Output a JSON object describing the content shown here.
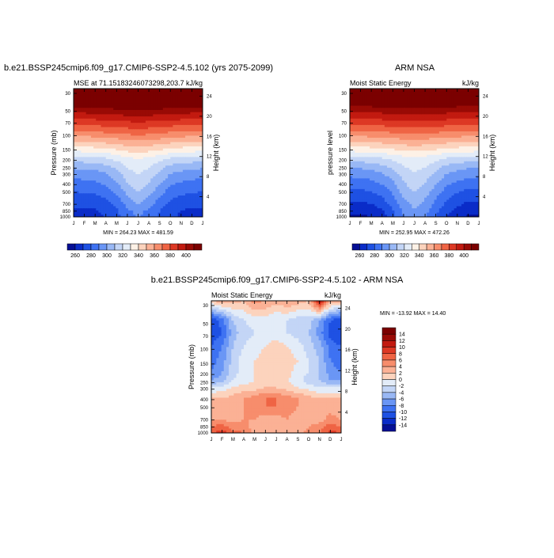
{
  "colormap": [
    "#050f95",
    "#0a2cc8",
    "#1e51e3",
    "#3e72f2",
    "#6a96f5",
    "#99b8f5",
    "#c3d5f6",
    "#e3ecf8",
    "#fdf1e6",
    "#fcd3bd",
    "#fbb195",
    "#f78d6c",
    "#ef6444",
    "#dd3824",
    "#c21a10",
    "#990a05",
    "#7b0000"
  ],
  "chart_data": [
    {
      "id": "model",
      "type": "heatmap",
      "title": "b.e21.BSSP245cmip6.f09_g17.CMIP6-SSP2-4.5.102 (yrs 2075-2099)",
      "left_label": "MSE at 71.15183246073298,203.7",
      "units": "kJ/kg",
      "ylabel": "Pressure (mb)",
      "y2label": "Height (km)",
      "stats": "MIN = 264.23 MAX = 481.59",
      "x": [
        "J",
        "F",
        "M",
        "A",
        "M",
        "J",
        "J",
        "A",
        "S",
        "O",
        "N",
        "D",
        "J"
      ],
      "pressure_ticks": [
        30,
        50,
        70,
        100,
        150,
        200,
        250,
        300,
        400,
        500,
        700,
        850,
        1000
      ],
      "height_ticks": [
        4,
        8,
        12,
        16,
        20,
        24
      ],
      "colorbar_levels": [
        260,
        280,
        300,
        320,
        340,
        360,
        380,
        400
      ],
      "contour_levels": [
        260,
        270,
        280,
        290,
        300,
        310,
        320,
        330,
        340,
        350,
        360,
        370,
        380,
        390,
        400,
        410
      ],
      "levels_hPa": [
        1000,
        850,
        700,
        500,
        400,
        300,
        250,
        200,
        150,
        100,
        70,
        50,
        30
      ],
      "values": [
        [
          266,
          266,
          267,
          270,
          277,
          287,
          291,
          287,
          279,
          272,
          268,
          266,
          266
        ],
        [
          268,
          268,
          269,
          272,
          278,
          288,
          293,
          288,
          280,
          274,
          270,
          268,
          268
        ],
        [
          272,
          272,
          273,
          276,
          282,
          294,
          300,
          294,
          285,
          277,
          274,
          272,
          272
        ],
        [
          280,
          281,
          282,
          285,
          292,
          303,
          311,
          304,
          294,
          286,
          283,
          281,
          280
        ],
        [
          286,
          287,
          288,
          292,
          299,
          310,
          316,
          310,
          301,
          292,
          289,
          287,
          286
        ],
        [
          295,
          296,
          297,
          300,
          306,
          316,
          321,
          316,
          309,
          301,
          298,
          296,
          295
        ],
        [
          303,
          304,
          305,
          308,
          313,
          321,
          326,
          321,
          315,
          308,
          306,
          304,
          303
        ],
        [
          316,
          317,
          318,
          320,
          324,
          329,
          331,
          329,
          325,
          320,
          318,
          317,
          316
        ],
        [
          338,
          339,
          340,
          342,
          344,
          347,
          349,
          347,
          345,
          342,
          340,
          339,
          338
        ],
        [
          366,
          367,
          368,
          370,
          371,
          373,
          374,
          373,
          371,
          369,
          368,
          367,
          366
        ],
        [
          388,
          389,
          390,
          391,
          392,
          393,
          394,
          393,
          392,
          391,
          390,
          389,
          388
        ],
        [
          410,
          410,
          411,
          412,
          413,
          414,
          414,
          414,
          413,
          412,
          411,
          410,
          410
        ],
        [
          450,
          450,
          451,
          452,
          453,
          454,
          454,
          454,
          453,
          452,
          451,
          450,
          450
        ]
      ]
    },
    {
      "id": "obs",
      "type": "heatmap",
      "title": "ARM NSA",
      "left_label": "Moist Static Energy",
      "units": "kJ/kg",
      "ylabel": "pressure level",
      "y2label": "Height (km)",
      "stats": "MIN = 252.95 MAX = 472.26",
      "x": [
        "J",
        "F",
        "M",
        "A",
        "M",
        "J",
        "J",
        "A",
        "S",
        "O",
        "N",
        "D",
        "J"
      ],
      "pressure_ticks": [
        30,
        50,
        70,
        100,
        150,
        200,
        250,
        300,
        400,
        500,
        700,
        850,
        1000
      ],
      "height_ticks": [
        4,
        8,
        12,
        16,
        20,
        24
      ],
      "colorbar_levels": [
        260,
        280,
        300,
        320,
        340,
        360,
        380,
        400
      ],
      "contour_levels": [
        260,
        270,
        280,
        290,
        300,
        310,
        320,
        330,
        340,
        350,
        360,
        370,
        380,
        390,
        400,
        410
      ],
      "levels_hPa": [
        1000,
        850,
        700,
        500,
        400,
        300,
        250,
        200,
        150,
        100,
        70,
        50,
        30
      ],
      "values": [
        [
          258,
          258,
          260,
          265,
          276,
          290,
          297,
          291,
          280,
          270,
          264,
          259,
          258
        ],
        [
          262,
          262,
          264,
          268,
          279,
          292,
          299,
          293,
          283,
          273,
          267,
          263,
          262
        ],
        [
          268,
          268,
          270,
          275,
          284,
          296,
          303,
          297,
          287,
          278,
          272,
          268,
          268
        ],
        [
          277,
          278,
          280,
          284,
          292,
          304,
          311,
          305,
          295,
          286,
          281,
          278,
          277
        ],
        [
          284,
          285,
          287,
          291,
          298,
          309,
          315,
          310,
          301,
          292,
          288,
          285,
          284
        ],
        [
          294,
          295,
          296,
          300,
          306,
          315,
          320,
          316,
          309,
          301,
          297,
          295,
          294
        ],
        [
          302,
          303,
          305,
          308,
          313,
          320,
          324,
          321,
          315,
          308,
          305,
          303,
          302
        ],
        [
          316,
          317,
          318,
          320,
          323,
          327,
          329,
          327,
          324,
          320,
          318,
          317,
          316
        ],
        [
          339,
          339,
          340,
          342,
          344,
          346,
          347,
          346,
          344,
          342,
          340,
          339,
          339
        ],
        [
          367,
          367,
          368,
          369,
          370,
          371,
          372,
          371,
          370,
          369,
          368,
          367,
          367
        ],
        [
          389,
          389,
          390,
          390,
          391,
          392,
          392,
          392,
          391,
          390,
          390,
          389,
          389
        ],
        [
          408,
          408,
          409,
          409,
          410,
          411,
          411,
          411,
          410,
          409,
          409,
          408,
          408
        ],
        [
          445,
          445,
          446,
          446,
          447,
          448,
          448,
          448,
          447,
          446,
          446,
          445,
          445
        ]
      ]
    },
    {
      "id": "diff",
      "type": "heatmap",
      "title": "b.e21.BSSP245cmip6.f09_g17.CMIP6-SSP2-4.5.102 - ARM NSA",
      "left_label": "Moist Static Energy",
      "units": "kJ/kg",
      "ylabel": "Pressure (mb)",
      "y2label": "Height (km)",
      "stats": "MIN = -13.92 MAX =  14.40",
      "x": [
        "J",
        "F",
        "M",
        "A",
        "M",
        "J",
        "J",
        "A",
        "S",
        "O",
        "N",
        "D",
        "J"
      ],
      "pressure_ticks": [
        30,
        50,
        70,
        100,
        150,
        200,
        250,
        300,
        400,
        500,
        700,
        850,
        1000
      ],
      "height_ticks": [
        4,
        8,
        12,
        16,
        20,
        24
      ],
      "colorbar_levels": [
        14,
        12,
        10,
        8,
        6,
        4,
        2,
        0,
        -2,
        -4,
        -6,
        -8,
        -10,
        -12,
        -14
      ],
      "contour_levels": [
        -14,
        -12,
        -10,
        -8,
        -6,
        -4,
        -2,
        0,
        2,
        4,
        6,
        8,
        10,
        12,
        14
      ],
      "levels_hPa": [
        1000,
        850,
        700,
        500,
        400,
        300,
        250,
        200,
        150,
        100,
        70,
        50,
        30
      ],
      "values": [
        [
          8,
          9,
          7,
          6,
          3,
          2,
          2,
          4,
          3,
          5,
          6,
          9,
          8
        ],
        [
          6,
          7,
          5,
          5,
          3,
          2,
          2,
          3,
          3,
          4,
          5,
          7,
          6
        ],
        [
          4,
          4,
          3,
          4,
          4,
          3,
          3,
          4,
          3,
          3,
          3,
          5,
          4
        ],
        [
          2,
          3,
          3,
          4,
          5,
          6,
          6,
          5,
          4,
          3,
          2,
          3,
          2
        ],
        [
          2,
          2,
          3,
          4,
          5,
          6,
          6,
          5,
          4,
          3,
          2,
          2,
          2
        ],
        [
          -2,
          -1,
          0,
          1,
          1,
          2,
          2,
          1,
          0,
          -1,
          -2,
          -2,
          -2
        ],
        [
          -6,
          -5,
          -2,
          -1,
          0,
          1,
          1,
          0,
          -1,
          -3,
          -4,
          -6,
          -6
        ],
        [
          -8,
          -6,
          -3,
          -1,
          0,
          1,
          2,
          1,
          -1,
          -2,
          -4,
          -7,
          -8
        ],
        [
          -9,
          -7,
          -3,
          -1,
          0,
          1,
          2,
          1,
          0,
          -2,
          -4,
          -8,
          -9
        ],
        [
          -10,
          -8,
          -4,
          -2,
          -1,
          0,
          1,
          0,
          -1,
          -3,
          -5,
          -9,
          -10
        ],
        [
          -12,
          -10,
          -5,
          -3,
          -2,
          -1,
          -1,
          -2,
          -3,
          -4,
          -7,
          -11,
          -12
        ],
        [
          -12,
          -9,
          -4,
          -2,
          -1,
          -1,
          -2,
          -2,
          -3,
          -3,
          -6,
          -10,
          -12
        ],
        [
          2,
          4,
          3,
          2,
          5,
          4,
          3,
          4,
          3,
          2,
          12,
          4,
          3
        ]
      ]
    }
  ]
}
